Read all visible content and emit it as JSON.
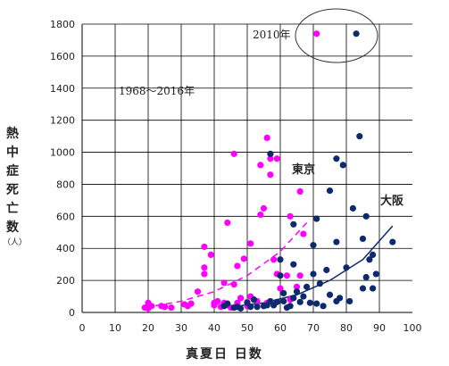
{
  "chart_data": {
    "type": "scatter",
    "xlabel": "真夏日 日数",
    "ylabel": "熱中症死亡数",
    "ylabel_unit": "（人）",
    "xlim": [
      0,
      100
    ],
    "ylim": [
      0,
      1800
    ],
    "xticks": [
      0,
      10,
      20,
      30,
      40,
      50,
      60,
      70,
      80,
      90,
      100
    ],
    "yticks": [
      0,
      200,
      400,
      600,
      800,
      1000,
      1200,
      1400,
      1600,
      1800
    ],
    "grid": true,
    "annotations": [
      "1968～2016年",
      "2010年"
    ],
    "series": [
      {
        "name": "東京",
        "color": "#ff00ff",
        "trend": "dashed",
        "points": [
          [
            19,
            30
          ],
          [
            20,
            60
          ],
          [
            20,
            25
          ],
          [
            21,
            40
          ],
          [
            24,
            40
          ],
          [
            25,
            35
          ],
          [
            27,
            30
          ],
          [
            31,
            50
          ],
          [
            32,
            40
          ],
          [
            33,
            55
          ],
          [
            35,
            130
          ],
          [
            37,
            410
          ],
          [
            37,
            280
          ],
          [
            37,
            240
          ],
          [
            39,
            360
          ],
          [
            40,
            60
          ],
          [
            40,
            45
          ],
          [
            41,
            70
          ],
          [
            42,
            35
          ],
          [
            43,
            185
          ],
          [
            43,
            60
          ],
          [
            44,
            560
          ],
          [
            45,
            30
          ],
          [
            46,
            175
          ],
          [
            46,
            990
          ],
          [
            47,
            60
          ],
          [
            47,
            290
          ],
          [
            48,
            90
          ],
          [
            49,
            335
          ],
          [
            50,
            40
          ],
          [
            50,
            65
          ],
          [
            51,
            100
          ],
          [
            51,
            430
          ],
          [
            52,
            80
          ],
          [
            53,
            70
          ],
          [
            54,
            610
          ],
          [
            54,
            920
          ],
          [
            55,
            650
          ],
          [
            56,
            60
          ],
          [
            56,
            1090
          ],
          [
            57,
            960
          ],
          [
            57,
            860
          ],
          [
            58,
            330
          ],
          [
            59,
            240
          ],
          [
            59,
            960
          ],
          [
            60,
            150
          ],
          [
            62,
            230
          ],
          [
            63,
            600
          ],
          [
            63,
            80
          ],
          [
            65,
            160
          ],
          [
            66,
            230
          ],
          [
            66,
            755
          ],
          [
            67,
            490
          ],
          [
            71,
            1740
          ]
        ],
        "fit": [
          [
            19,
            30
          ],
          [
            30,
            70
          ],
          [
            40,
            130
          ],
          [
            50,
            230
          ],
          [
            60,
            380
          ],
          [
            68,
            560
          ]
        ]
      },
      {
        "name": "大阪",
        "color": "#0d2a6e",
        "trend": "solid",
        "points": [
          [
            43,
            40
          ],
          [
            44,
            55
          ],
          [
            46,
            30
          ],
          [
            47,
            35
          ],
          [
            48,
            25
          ],
          [
            50,
            60
          ],
          [
            51,
            35
          ],
          [
            52,
            80
          ],
          [
            53,
            35
          ],
          [
            55,
            40
          ],
          [
            56,
            45
          ],
          [
            57,
            990
          ],
          [
            57,
            70
          ],
          [
            58,
            45
          ],
          [
            59,
            65
          ],
          [
            60,
            330
          ],
          [
            60,
            230
          ],
          [
            61,
            120
          ],
          [
            61,
            70
          ],
          [
            62,
            30
          ],
          [
            63,
            40
          ],
          [
            64,
            90
          ],
          [
            64,
            550
          ],
          [
            64,
            300
          ],
          [
            65,
            130
          ],
          [
            66,
            65
          ],
          [
            67,
            100
          ],
          [
            68,
            160
          ],
          [
            69,
            60
          ],
          [
            70,
            240
          ],
          [
            70,
            420
          ],
          [
            71,
            585
          ],
          [
            71,
            55
          ],
          [
            72,
            180
          ],
          [
            73,
            40
          ],
          [
            74,
            265
          ],
          [
            75,
            760
          ],
          [
            75,
            110
          ],
          [
            77,
            960
          ],
          [
            77,
            440
          ],
          [
            77,
            70
          ],
          [
            78,
            90
          ],
          [
            79,
            920
          ],
          [
            80,
            280
          ],
          [
            81,
            70
          ],
          [
            82,
            650
          ],
          [
            83,
            1740
          ],
          [
            84,
            1100
          ],
          [
            85,
            150
          ],
          [
            85,
            460
          ],
          [
            86,
            220
          ],
          [
            86,
            600
          ],
          [
            87,
            330
          ],
          [
            88,
            360
          ],
          [
            88,
            150
          ],
          [
            89,
            240
          ],
          [
            94,
            440
          ]
        ],
        "fit": [
          [
            43,
            30
          ],
          [
            55,
            60
          ],
          [
            65,
            110
          ],
          [
            75,
            200
          ],
          [
            85,
            330
          ],
          [
            94,
            540
          ]
        ]
      }
    ]
  }
}
